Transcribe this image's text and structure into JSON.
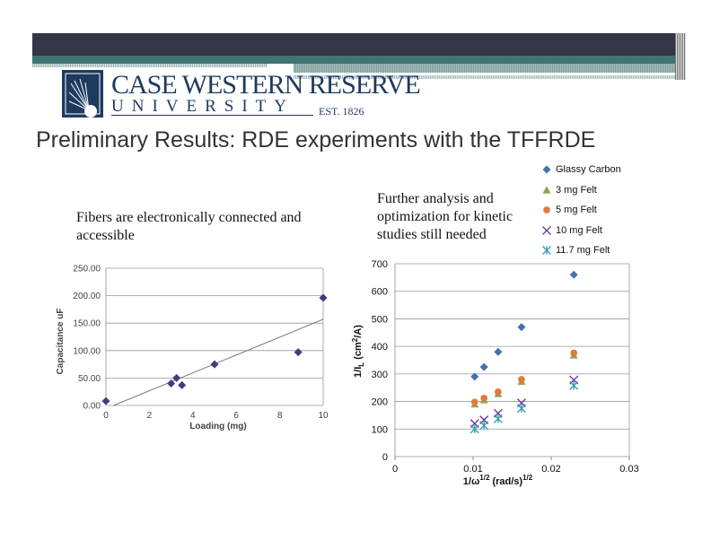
{
  "header": {
    "logo_name": "CASE WESTERN RESERVE",
    "logo_university": "UNIVERSITY",
    "logo_est": "EST. 1826"
  },
  "title": "Preliminary Results:  RDE experiments with the TFFRDE",
  "text_left": "Fibers are electronically connected and accessible",
  "text_right": "Further analysis and optimization for kinetic studies still needed",
  "chart_data": [
    {
      "type": "scatter",
      "title": "",
      "xlabel": "Loading (mg)",
      "ylabel": "Capacitance uF",
      "xlim": [
        0,
        10
      ],
      "ylim": [
        0,
        250
      ],
      "xticks": [
        "0",
        "2",
        "4",
        "6",
        "8",
        "10"
      ],
      "yticks": [
        "0.00",
        "50.00",
        "100.00",
        "150.00",
        "200.00",
        "250.00"
      ],
      "grid": "horizontal",
      "color": "#3f3d80",
      "x": [
        0,
        3,
        3.25,
        3.5,
        5,
        8.85,
        10
      ],
      "y": [
        8,
        40,
        50,
        37,
        75,
        97,
        196
      ],
      "trendline": {
        "x": [
          0.35,
          10
        ],
        "y": [
          0,
          157
        ]
      }
    },
    {
      "type": "scatter",
      "xlabel": "1/ω1/2 (rad/s)1/2",
      "xlabel_parts": [
        "1/ω",
        "1/2",
        " (rad/s)",
        "1/2"
      ],
      "ylabel": "1/IL (cm2/A)",
      "ylabel_parts": [
        "1/I",
        "L",
        " (cm",
        "2",
        "/A)"
      ],
      "xlim": [
        0,
        0.03
      ],
      "ylim": [
        0,
        700
      ],
      "xticks": [
        "0",
        "0.01",
        "0.02",
        "0.03"
      ],
      "yticks": [
        "0",
        "100",
        "200",
        "300",
        "400",
        "500",
        "600",
        "700"
      ],
      "grid": "horizontal",
      "legend_position": "top-right",
      "x": [
        0.0102,
        0.0114,
        0.0132,
        0.0162,
        0.0229
      ],
      "series": [
        {
          "name": "Glassy Carbon",
          "marker": "diamond",
          "color": "#4470b0",
          "values": [
            290,
            325,
            380,
            470,
            660
          ]
        },
        {
          "name": "3 mg Felt",
          "marker": "triangle",
          "color": "#8aa846",
          "values": [
            190,
            205,
            228,
            272,
            368
          ]
        },
        {
          "name": "5 mg Felt",
          "marker": "circle",
          "color": "#e07b39",
          "values": [
            198,
            212,
            235,
            280,
            376
          ]
        },
        {
          "name": "10 mg Felt",
          "marker": "x",
          "color": "#6a3d9a",
          "values": [
            120,
            133,
            157,
            195,
            278
          ]
        },
        {
          "name": "11.7 mg Felt",
          "marker": "star",
          "color": "#3a9fb8",
          "values": [
            100,
            113,
            137,
            175,
            258
          ]
        }
      ]
    }
  ]
}
